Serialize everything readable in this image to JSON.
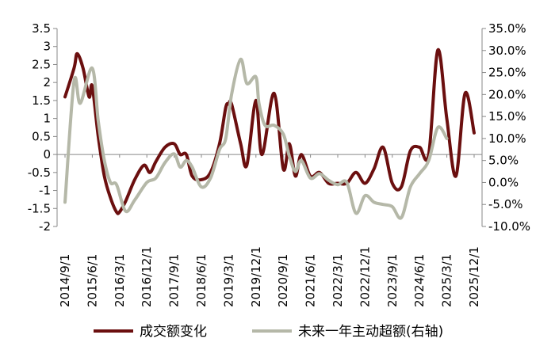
{
  "chart_data": {
    "type": "line",
    "title": "",
    "xlabel": "",
    "ylabel": "",
    "x_ticks": [
      "2014/9/1",
      "2015/6/1",
      "2016/3/1",
      "2016/12/1",
      "2017/9/1",
      "2018/6/1",
      "2019/3/1",
      "2019/12/1",
      "2020/9/1",
      "2021/6/1",
      "2022/3/1",
      "2022/12/1",
      "2023/9/1",
      "2024/6/1",
      "2025/3/1",
      "2025/12/1"
    ],
    "x_range": [
      "2014-09-01",
      "2025-12-01"
    ],
    "y_left": {
      "range": [
        -2,
        3.5
      ],
      "ticks": [
        "3.5",
        "3",
        "2.5",
        "2",
        "1.5",
        "1",
        "0.5",
        "0",
        "-0.5",
        "-1",
        "-1.5",
        "-2"
      ],
      "tick_values": [
        3.5,
        3,
        2.5,
        2,
        1.5,
        1,
        0.5,
        0,
        -0.5,
        -1,
        -1.5,
        -2
      ]
    },
    "y_right": {
      "range": [
        -10,
        35
      ],
      "ticks": [
        "35.0%",
        "30.0%",
        "25.0%",
        "20.0%",
        "15.0%",
        "10.0%",
        "5.0%",
        "0.0%",
        "-5.0%",
        "-10.0%"
      ],
      "tick_values": [
        35,
        30,
        25,
        20,
        15,
        10,
        5,
        0,
        -5,
        -10
      ]
    },
    "series": [
      {
        "name": "成交额变化",
        "axis": "left",
        "color": "#6b0f0f",
        "points": [
          [
            "2014-09-01",
            1.6
          ],
          [
            "2014-12-01",
            2.4
          ],
          [
            "2015-01-01",
            2.8
          ],
          [
            "2015-03-01",
            2.4
          ],
          [
            "2015-05-01",
            1.6
          ],
          [
            "2015-06-01",
            1.9
          ],
          [
            "2015-08-01",
            0.5
          ],
          [
            "2015-10-01",
            -0.6
          ],
          [
            "2015-12-01",
            -1.2
          ],
          [
            "2016-02-01",
            -1.6
          ],
          [
            "2016-03-01",
            -1.6
          ],
          [
            "2016-05-01",
            -1.3
          ],
          [
            "2016-08-01",
            -0.7
          ],
          [
            "2016-11-01",
            -0.3
          ],
          [
            "2017-01-01",
            -0.5
          ],
          [
            "2017-03-01",
            -0.2
          ],
          [
            "2017-06-01",
            0.2
          ],
          [
            "2017-09-01",
            0.3
          ],
          [
            "2017-11-01",
            0.0
          ],
          [
            "2018-01-01",
            0.0
          ],
          [
            "2018-03-01",
            -0.6
          ],
          [
            "2018-06-01",
            -0.7
          ],
          [
            "2018-09-01",
            -0.5
          ],
          [
            "2018-12-01",
            0.3
          ],
          [
            "2019-02-01",
            1.3
          ],
          [
            "2019-03-01",
            1.4
          ],
          [
            "2019-04-01",
            1.4
          ],
          [
            "2019-07-01",
            0.3
          ],
          [
            "2019-09-01",
            -0.3
          ],
          [
            "2019-12-01",
            1.5
          ],
          [
            "2020-02-01",
            0.0
          ],
          [
            "2020-06-01",
            1.7
          ],
          [
            "2020-09-01",
            -0.4
          ],
          [
            "2020-11-01",
            0.3
          ],
          [
            "2021-01-01",
            -0.6
          ],
          [
            "2021-03-01",
            0.0
          ],
          [
            "2021-06-01",
            -0.6
          ],
          [
            "2021-09-01",
            -0.5
          ],
          [
            "2021-12-01",
            -0.8
          ],
          [
            "2022-03-01",
            -0.8
          ],
          [
            "2022-06-01",
            -0.8
          ],
          [
            "2022-09-01",
            -0.5
          ],
          [
            "2022-12-01",
            -0.8
          ],
          [
            "2023-03-01",
            -0.4
          ],
          [
            "2023-06-01",
            0.2
          ],
          [
            "2023-09-01",
            -0.8
          ],
          [
            "2023-12-01",
            -0.9
          ],
          [
            "2024-03-01",
            0.1
          ],
          [
            "2024-06-01",
            0.2
          ],
          [
            "2024-09-01",
            0.0
          ],
          [
            "2024-12-01",
            2.9
          ],
          [
            "2025-03-01",
            1.0
          ],
          [
            "2025-06-01",
            -0.6
          ],
          [
            "2025-09-01",
            1.7
          ],
          [
            "2025-12-01",
            0.6
          ]
        ]
      },
      {
        "name": "未来一年主动超额(右轴)",
        "axis": "right",
        "color": "#b5b8a8",
        "points": [
          [
            "2014-09-01",
            -4.5
          ],
          [
            "2014-12-01",
            23.0
          ],
          [
            "2015-02-01",
            18.0
          ],
          [
            "2015-06-01",
            26.0
          ],
          [
            "2015-08-01",
            14.0
          ],
          [
            "2015-10-01",
            5.0
          ],
          [
            "2015-12-01",
            0.0
          ],
          [
            "2016-02-01",
            -0.5
          ],
          [
            "2016-05-01",
            -6.5
          ],
          [
            "2016-08-01",
            -4.0
          ],
          [
            "2016-12-01",
            0.0
          ],
          [
            "2017-03-01",
            1.0
          ],
          [
            "2017-06-01",
            4.5
          ],
          [
            "2017-09-01",
            6.5
          ],
          [
            "2017-11-01",
            3.5
          ],
          [
            "2018-01-01",
            5.0
          ],
          [
            "2018-03-01",
            3.5
          ],
          [
            "2018-06-01",
            -1.0
          ],
          [
            "2018-09-01",
            1.0
          ],
          [
            "2018-12-01",
            7.5
          ],
          [
            "2019-02-01",
            10.0
          ],
          [
            "2019-04-01",
            20.0
          ],
          [
            "2019-07-01",
            28.0
          ],
          [
            "2019-09-01",
            22.5
          ],
          [
            "2019-12-01",
            24.0
          ],
          [
            "2020-01-01",
            18.0
          ],
          [
            "2020-03-01",
            13.0
          ],
          [
            "2020-06-01",
            13.0
          ],
          [
            "2020-09-01",
            11.0
          ],
          [
            "2020-11-01",
            6.0
          ],
          [
            "2021-01-01",
            2.5
          ],
          [
            "2021-03-01",
            5.0
          ],
          [
            "2021-06-01",
            1.0
          ],
          [
            "2021-09-01",
            2.0
          ],
          [
            "2021-12-01",
            0.5
          ],
          [
            "2022-03-01",
            -0.5
          ],
          [
            "2022-06-01",
            0.0
          ],
          [
            "2022-09-01",
            -7.0
          ],
          [
            "2022-12-01",
            -3.0
          ],
          [
            "2023-03-01",
            -4.5
          ],
          [
            "2023-06-01",
            -5.0
          ],
          [
            "2023-09-01",
            -5.5
          ],
          [
            "2023-12-01",
            -8.0
          ],
          [
            "2024-03-01",
            -1.0
          ],
          [
            "2024-06-01",
            2.0
          ],
          [
            "2024-09-01",
            5.0
          ],
          [
            "2024-12-01",
            12.5
          ],
          [
            "2025-03-01",
            10.0
          ]
        ]
      }
    ],
    "legend": {
      "position": "bottom"
    },
    "grid": false
  }
}
